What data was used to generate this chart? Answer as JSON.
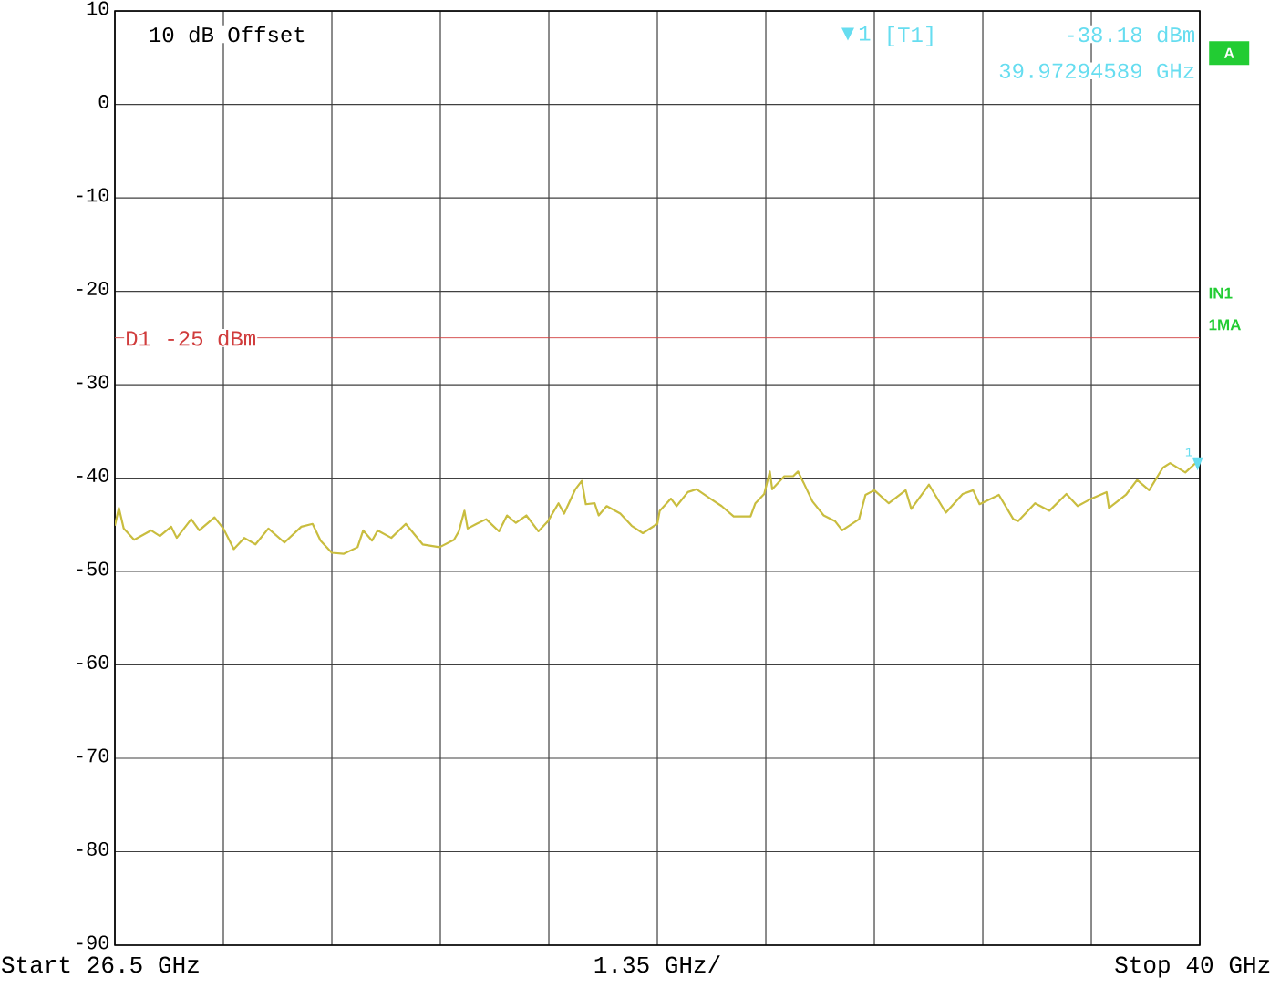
{
  "chart_data": {
    "type": "line",
    "xlim": [
      26.5,
      40
    ],
    "ylim": [
      -90,
      10
    ],
    "xticks": [
      26.5,
      {
        "value": 27.85,
        "label": null
      },
      {
        "value": 29.2,
        "label": null
      },
      {
        "value": 30.55,
        "label": null
      },
      {
        "value": 31.9,
        "label": null
      },
      {
        "value": 33.25,
        "label": null
      },
      {
        "value": 34.6,
        "label": null
      },
      {
        "value": 35.95,
        "label": null
      },
      {
        "value": 37.3,
        "label": null
      },
      {
        "value": 38.65,
        "label": null
      },
      40
    ],
    "yticks": [
      -90,
      -80,
      -70,
      -60,
      -50,
      -40,
      -30,
      -20,
      -10,
      0,
      10
    ],
    "xlabel": "1.35 GHz/",
    "grid": true,
    "color": "#c9bd3f",
    "x": [
      26.5,
      26.55,
      26.61,
      26.74,
      26.95,
      27.06,
      27.2,
      27.27,
      27.45,
      27.55,
      27.74,
      27.85,
      27.98,
      28.11,
      28.25,
      28.41,
      28.61,
      28.82,
      28.96,
      29.06,
      29.2,
      29.35,
      29.52,
      29.59,
      29.7,
      29.77,
      29.94,
      30.12,
      30.33,
      30.54,
      30.72,
      30.78,
      30.85,
      30.89,
      31.0,
      31.12,
      31.28,
      31.38,
      31.49,
      31.62,
      31.77,
      31.89,
      32.02,
      32.09,
      32.23,
      32.31,
      32.36,
      32.47,
      32.52,
      32.62,
      32.79,
      32.93,
      33.07,
      33.25,
      33.28,
      33.42,
      33.49,
      33.63,
      33.74,
      33.91,
      34.05,
      34.2,
      34.41,
      34.47,
      34.58,
      34.65,
      34.68,
      34.83,
      34.94,
      35.0,
      35.07,
      35.18,
      35.32,
      35.46,
      35.55,
      35.76,
      35.84,
      35.95,
      36.13,
      36.34,
      36.41,
      36.63,
      36.84,
      37.05,
      37.18,
      37.26,
      37.5,
      37.68,
      37.74,
      37.95,
      38.13,
      38.34,
      38.48,
      38.63,
      38.84,
      38.87,
      39.08,
      39.22,
      39.37,
      39.54,
      39.63,
      39.82,
      39.96,
      40.0
    ],
    "values": [
      -45.1,
      -43.2,
      -45.4,
      -46.6,
      -45.6,
      -46.2,
      -45.2,
      -46.4,
      -44.4,
      -45.6,
      -44.2,
      -45.4,
      -47.6,
      -46.4,
      -47.1,
      -45.4,
      -46.9,
      -45.2,
      -44.9,
      -46.7,
      -48.0,
      -48.1,
      -47.4,
      -45.6,
      -46.7,
      -45.6,
      -46.4,
      -44.9,
      -47.1,
      -47.4,
      -46.6,
      -45.7,
      -43.5,
      -45.4,
      -44.9,
      -44.4,
      -45.7,
      -44.0,
      -44.8,
      -44.0,
      -45.7,
      -44.6,
      -42.7,
      -43.8,
      -41.2,
      -40.3,
      -42.8,
      -42.7,
      -44.0,
      -43.0,
      -43.8,
      -45.1,
      -45.9,
      -44.9,
      -43.5,
      -42.2,
      -43.0,
      -41.5,
      -41.2,
      -42.2,
      -43.0,
      -44.1,
      -44.1,
      -42.7,
      -41.7,
      -39.3,
      -41.2,
      -39.8,
      -39.8,
      -39.3,
      -40.5,
      -42.5,
      -44.0,
      -44.6,
      -45.6,
      -44.4,
      -41.8,
      -41.3,
      -42.7,
      -41.3,
      -43.3,
      -40.7,
      -43.7,
      -41.7,
      -41.3,
      -42.8,
      -41.8,
      -44.4,
      -44.6,
      -42.7,
      -43.5,
      -41.7,
      -43.0,
      -42.3,
      -41.5,
      -43.2,
      -41.8,
      -40.2,
      -41.3,
      -38.9,
      -38.4,
      -39.4,
      -38.3,
      -38.2
    ],
    "ref_lines": [
      {
        "axis": "y",
        "value": -25,
        "label": "D1 -25 dBm",
        "color": "#d03c3c"
      }
    ],
    "annotations": [
      "10 dB Offset",
      "1",
      "[T1]",
      "-38.18 dBm",
      "39.97294589 GHz",
      {
        "text": "1",
        "x": 39.97294589,
        "y": -38.18
      },
      "A",
      "IN1",
      "1MA",
      "Start",
      "GHz",
      "Stop",
      "GHz"
    ]
  }
}
